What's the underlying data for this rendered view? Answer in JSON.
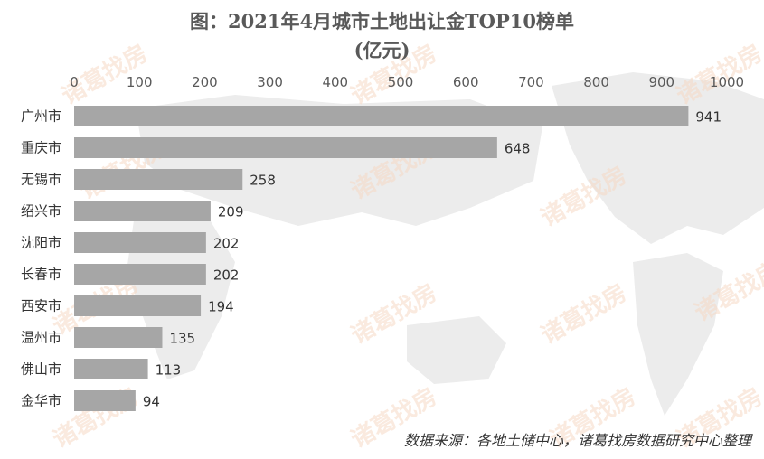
{
  "watermark": {
    "text": "诸葛找房"
  },
  "chart_data": {
    "type": "bar",
    "orientation": "horizontal",
    "title": "图：2021年4月城市土地出让金TOP10榜单",
    "subtitle": "(亿元)",
    "categories": [
      "广州市",
      "重庆市",
      "无锡市",
      "绍兴市",
      "沈阳市",
      "长春市",
      "西安市",
      "温州市",
      "佛山市",
      "金华市"
    ],
    "values": [
      941,
      648,
      258,
      209,
      202,
      202,
      194,
      135,
      113,
      94
    ],
    "xlim": [
      0,
      1000
    ],
    "x_ticks": [
      "0",
      "100",
      "200",
      "300",
      "400",
      "500",
      "600",
      "700",
      "800",
      "900",
      "1000"
    ],
    "x_axis_position": "top",
    "grid": false,
    "legend": "none",
    "bar_color": "#a6a6a6",
    "source": "数据来源：各地土储中心，诸葛找房数据研究中心整理"
  }
}
